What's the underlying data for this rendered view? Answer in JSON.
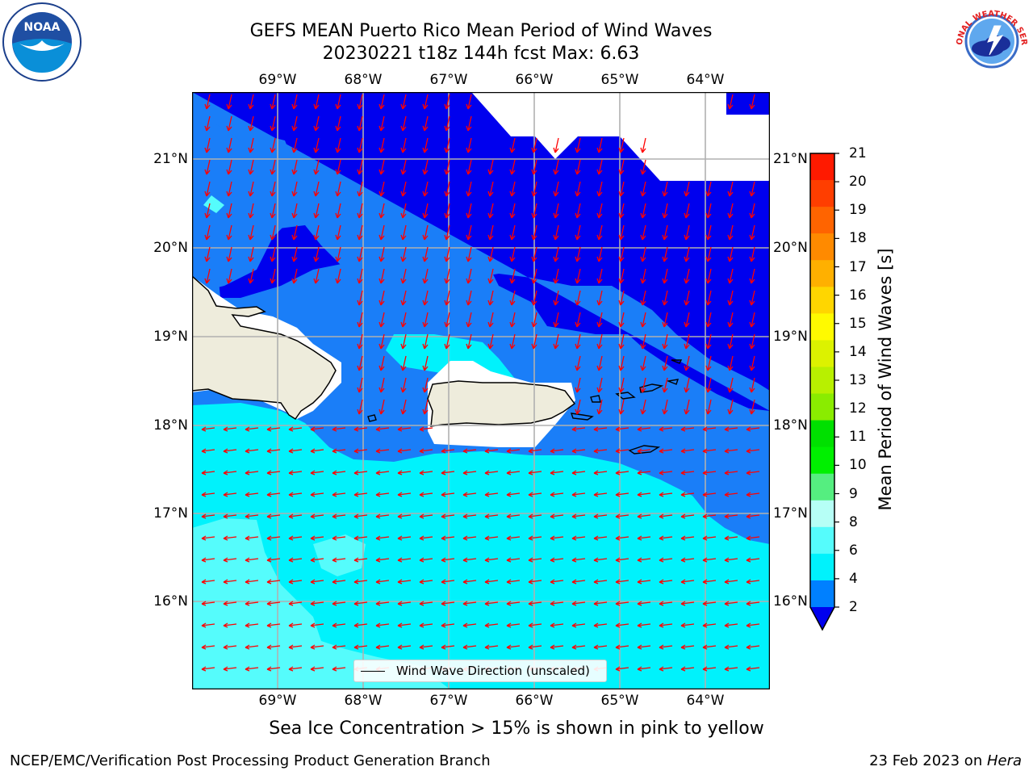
{
  "title_line1": "GEFS MEAN Puerto Rico Mean Period of Wind Waves",
  "title_line2": "20230221 t18z 144h fcst   Max: 6.63",
  "lon_labels": [
    "69°W",
    "68°W",
    "67°W",
    "66°W",
    "65°W",
    "64°W"
  ],
  "lat_labels": [
    "21°N",
    "20°N",
    "19°N",
    "18°N",
    "17°N",
    "16°N"
  ],
  "colorbar": {
    "title": "Mean Period of Wind Waves [s]",
    "ticks": [
      "21",
      "20",
      "19",
      "18",
      "17",
      "16",
      "15",
      "14",
      "13",
      "12",
      "11",
      "10",
      "9",
      "8",
      "6",
      "4",
      "2"
    ],
    "colors": [
      "#ff1a00",
      "#ff3e00",
      "#ff6400",
      "#ff8a00",
      "#ffb000",
      "#ffd600",
      "#fffa00",
      "#dcf200",
      "#b8f000",
      "#8aec00",
      "#00e000",
      "#00f000",
      "#55ee80",
      "#b6fff6",
      "#55fcfc",
      "#00f2fc",
      "#0080ff",
      "#0000ee"
    ]
  },
  "legend_label": "Wind Wave Direction (unscaled)",
  "footer_note": "Sea Ice Concentration > 15% is shown in pink to yellow",
  "credit": "NCEP/EMC/Verification Post Processing Product Generation Branch",
  "date_text": "23 Feb 2023 on ",
  "date_machine": "Hera",
  "logos": {
    "noaa": "NOAA",
    "nws": "NATIONAL WEATHER SERVICE"
  },
  "map_colors": {
    "dark_blue": "#0000ee",
    "medium_blue": "#1a7ef8",
    "cyan": "#00f2fc",
    "light_cyan": "#55fcfc",
    "land": "#eeecdc",
    "arrow": "#ff0000",
    "grid": "#b0b0b0"
  }
}
